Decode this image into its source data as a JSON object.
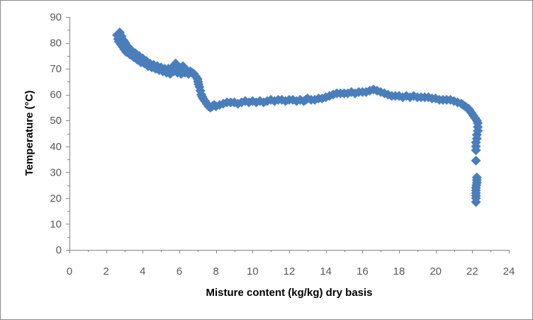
{
  "chart_data": {
    "type": "scatter",
    "title": "",
    "xlabel": "Misture content (kg/kg) dry basis",
    "ylabel": "Temperature (°C)",
    "xlim": [
      0,
      24
    ],
    "ylim": [
      0,
      90
    ],
    "x_ticks": [
      "0",
      "2",
      "4",
      "6",
      "8",
      "10",
      "12",
      "14",
      "16",
      "18",
      "20",
      "22",
      "24"
    ],
    "y_ticks": [
      "0",
      "10",
      "20",
      "30",
      "40",
      "50",
      "60",
      "70",
      "80",
      "90"
    ],
    "grid": "none",
    "legend": "none",
    "marker": "diamond",
    "color": "#4a7ebb",
    "points": [
      [
        2.6,
        83
      ],
      [
        2.65,
        81.5
      ],
      [
        2.7,
        80.5
      ],
      [
        2.75,
        84
      ],
      [
        2.8,
        79.5
      ],
      [
        2.85,
        82.5
      ],
      [
        2.9,
        78.5
      ],
      [
        2.95,
        81
      ],
      [
        3.0,
        77.5
      ],
      [
        3.05,
        80
      ],
      [
        3.1,
        76.5
      ],
      [
        3.2,
        78.5
      ],
      [
        3.3,
        75.5
      ],
      [
        3.4,
        77
      ],
      [
        3.5,
        74.5
      ],
      [
        3.6,
        76
      ],
      [
        3.7,
        73.5
      ],
      [
        3.8,
        75
      ],
      [
        3.9,
        72.5
      ],
      [
        4.0,
        74
      ],
      [
        4.1,
        72
      ],
      [
        4.2,
        73
      ],
      [
        4.3,
        71
      ],
      [
        4.4,
        72
      ],
      [
        4.5,
        70.5
      ],
      [
        4.6,
        71.5
      ],
      [
        4.7,
        70
      ],
      [
        4.8,
        71
      ],
      [
        4.9,
        69.5
      ],
      [
        5.0,
        70.5
      ],
      [
        5.1,
        69
      ],
      [
        5.2,
        70
      ],
      [
        5.3,
        68.5
      ],
      [
        5.4,
        70
      ],
      [
        5.5,
        68
      ],
      [
        5.6,
        70.5
      ],
      [
        5.7,
        69
      ],
      [
        5.8,
        72
      ],
      [
        5.9,
        68.5
      ],
      [
        6.0,
        70
      ],
      [
        6.1,
        68
      ],
      [
        6.2,
        71
      ],
      [
        6.3,
        68.5
      ],
      [
        6.4,
        69.5
      ],
      [
        6.5,
        68
      ],
      [
        6.6,
        69
      ],
      [
        6.7,
        68.5
      ],
      [
        6.8,
        68
      ],
      [
        6.9,
        67
      ],
      [
        7.0,
        66
      ],
      [
        7.05,
        64
      ],
      [
        7.1,
        63
      ],
      [
        7.15,
        61.5
      ],
      [
        7.2,
        60
      ],
      [
        7.3,
        58.5
      ],
      [
        7.4,
        57.5
      ],
      [
        7.5,
        56.5
      ],
      [
        7.6,
        55.5
      ],
      [
        7.7,
        55
      ],
      [
        7.8,
        55.5
      ],
      [
        7.9,
        56
      ],
      [
        8.0,
        55.5
      ],
      [
        8.2,
        56
      ],
      [
        8.4,
        56.5
      ],
      [
        8.6,
        57
      ],
      [
        8.8,
        57
      ],
      [
        9.0,
        57
      ],
      [
        9.2,
        56.5
      ],
      [
        9.4,
        57
      ],
      [
        9.6,
        57.5
      ],
      [
        9.8,
        57
      ],
      [
        10.0,
        57.5
      ],
      [
        10.2,
        57
      ],
      [
        10.4,
        57.5
      ],
      [
        10.6,
        57
      ],
      [
        10.8,
        57.5
      ],
      [
        11.0,
        58
      ],
      [
        11.2,
        57.5
      ],
      [
        11.4,
        58
      ],
      [
        11.6,
        58
      ],
      [
        11.8,
        57.5
      ],
      [
        12.0,
        58
      ],
      [
        12.2,
        58
      ],
      [
        12.4,
        57.5
      ],
      [
        12.6,
        58
      ],
      [
        12.8,
        57.5
      ],
      [
        13.0,
        58.5
      ],
      [
        13.2,
        58
      ],
      [
        13.4,
        58
      ],
      [
        13.6,
        58.5
      ],
      [
        13.8,
        58.5
      ],
      [
        14.0,
        59
      ],
      [
        14.2,
        59.5
      ],
      [
        14.4,
        60
      ],
      [
        14.6,
        60.5
      ],
      [
        14.8,
        60.5
      ],
      [
        15.0,
        60.5
      ],
      [
        15.2,
        60.5
      ],
      [
        15.4,
        61
      ],
      [
        15.6,
        60.5
      ],
      [
        15.8,
        61
      ],
      [
        16.0,
        61
      ],
      [
        16.2,
        61
      ],
      [
        16.4,
        61.5
      ],
      [
        16.6,
        62
      ],
      [
        16.8,
        61.5
      ],
      [
        17.0,
        61
      ],
      [
        17.2,
        60.5
      ],
      [
        17.4,
        60
      ],
      [
        17.6,
        59.5
      ],
      [
        17.8,
        59.5
      ],
      [
        18.0,
        59.5
      ],
      [
        18.2,
        59
      ],
      [
        18.4,
        59.5
      ],
      [
        18.6,
        59
      ],
      [
        18.8,
        59.5
      ],
      [
        19.0,
        59
      ],
      [
        19.2,
        59
      ],
      [
        19.4,
        59
      ],
      [
        19.6,
        59
      ],
      [
        19.8,
        58.5
      ],
      [
        20.0,
        58.5
      ],
      [
        20.2,
        58
      ],
      [
        20.4,
        58
      ],
      [
        20.6,
        58
      ],
      [
        20.8,
        58
      ],
      [
        21.0,
        57.5
      ],
      [
        21.2,
        57
      ],
      [
        21.4,
        56.5
      ],
      [
        21.6,
        55.5
      ],
      [
        21.8,
        54.5
      ],
      [
        21.95,
        53
      ],
      [
        22.05,
        52
      ],
      [
        22.15,
        51
      ],
      [
        22.25,
        50
      ],
      [
        22.3,
        49
      ],
      [
        22.3,
        47.5
      ],
      [
        22.3,
        46
      ],
      [
        22.25,
        44.5
      ],
      [
        22.25,
        43
      ],
      [
        22.2,
        41.5
      ],
      [
        22.2,
        40
      ],
      [
        22.2,
        38.5
      ],
      [
        22.2,
        34.5
      ],
      [
        22.25,
        28
      ],
      [
        22.25,
        26
      ],
      [
        22.2,
        24
      ],
      [
        22.2,
        22
      ],
      [
        22.2,
        20
      ],
      [
        22.2,
        18.5
      ]
    ]
  }
}
